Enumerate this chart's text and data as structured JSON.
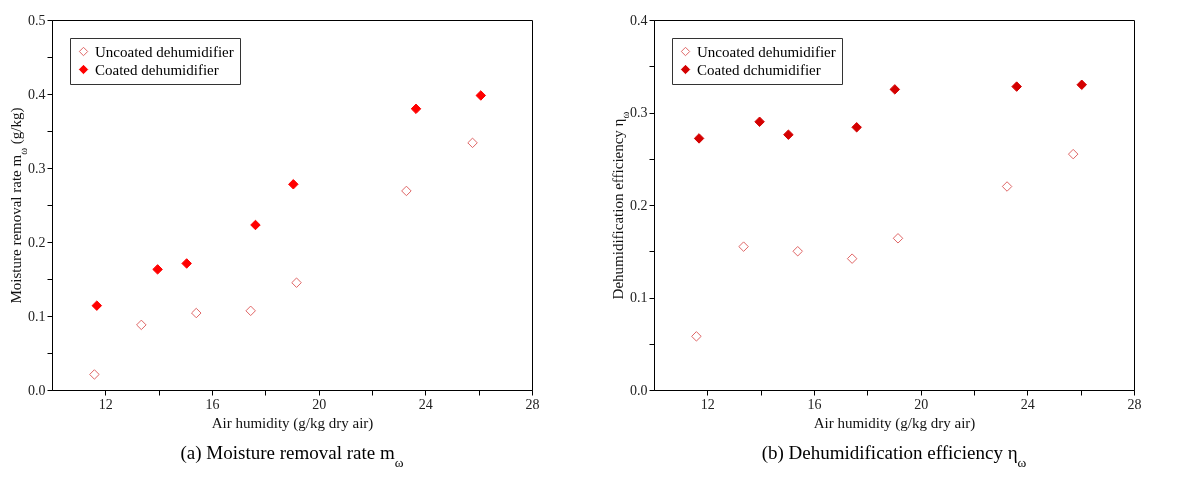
{
  "chart_data": [
    {
      "type": "scatter",
      "title": "(a) Moisture removal rate m$_{ω}$",
      "xlabel": "Air humidity (g/kg dry air)",
      "ylabel": "Moisture removal rate m$_{ω}$ (g/kg)",
      "xlim": [
        10,
        28
      ],
      "xticks": [
        12,
        {
          "value": 14,
          "label": null
        },
        16,
        {
          "value": 18,
          "label": null
        },
        20,
        {
          "value": 22,
          "label": null
        },
        24,
        {
          "value": 26,
          "label": null
        },
        28
      ],
      "ylim": [
        0,
        0.5
      ],
      "yticks": [
        {
          "value": 0,
          "label": "0.0"
        },
        {
          "value": 0.05,
          "label": null
        },
        0.1,
        {
          "value": 0.15,
          "label": null
        },
        0.2,
        {
          "value": 0.25,
          "label": null
        },
        0.3,
        {
          "value": 0.35,
          "label": null
        },
        0.4,
        {
          "value": 0.45,
          "label": null
        },
        0.5
      ],
      "legend": "top left",
      "marker": "diamond",
      "grid": false,
      "series": [
        {
          "name": "Uncoated dehumidifier",
          "color": "#e06666",
          "x": [
            11.59,
            13.35,
            15.41,
            17.45,
            19.17,
            23.29,
            25.77
          ],
          "values": [
            0.021,
            0.088,
            0.104,
            0.107,
            0.145,
            0.269,
            0.334
          ]
        },
        {
          "name": "Coated dehumidifier",
          "color": "#ff0000",
          "x": [
            11.68,
            13.96,
            15.05,
            17.63,
            19.05,
            23.65,
            26.08
          ],
          "values": [
            0.114,
            0.163,
            0.171,
            0.223,
            0.278,
            0.38,
            0.398
          ]
        }
      ]
    },
    {
      "type": "scatter",
      "title": "(b) Dehumidification efficiency η$_{ω}$",
      "xlabel": "Air humidity (g/kg dry air)",
      "ylabel": "Dehumidification efficiency η$_{ω}$",
      "xlim": [
        10,
        28
      ],
      "xticks": [
        12,
        {
          "value": 14,
          "label": null
        },
        16,
        {
          "value": 18,
          "label": null
        },
        20,
        {
          "value": 22,
          "label": null
        },
        24,
        {
          "value": 26,
          "label": null
        },
        28
      ],
      "ylim": [
        0,
        0.4
      ],
      "yticks": [
        {
          "value": 0,
          "label": "0.0"
        },
        {
          "value": 0.05,
          "label": null
        },
        0.1,
        {
          "value": 0.15,
          "label": null
        },
        0.2,
        {
          "value": 0.25,
          "label": null
        },
        0.3,
        {
          "value": 0.35,
          "label": null
        },
        0.4
      ],
      "legend": "top left",
      "marker": "diamond",
      "grid": false,
      "series": [
        {
          "name": "Uncoated dehumidifier",
          "color": "#e06666",
          "x": [
            11.59,
            13.36,
            15.39,
            17.43,
            19.15,
            23.24,
            25.72
          ],
          "values": [
            0.058,
            0.155,
            0.15,
            0.142,
            0.164,
            0.22,
            0.255
          ]
        },
        {
          "name": "Coated dchumidifier",
          "color": "#d40000",
          "x": [
            11.69,
            13.96,
            15.04,
            17.6,
            19.03,
            23.6,
            26.04
          ],
          "values": [
            0.272,
            0.29,
            0.276,
            0.284,
            0.325,
            0.328,
            0.33
          ]
        }
      ]
    }
  ]
}
